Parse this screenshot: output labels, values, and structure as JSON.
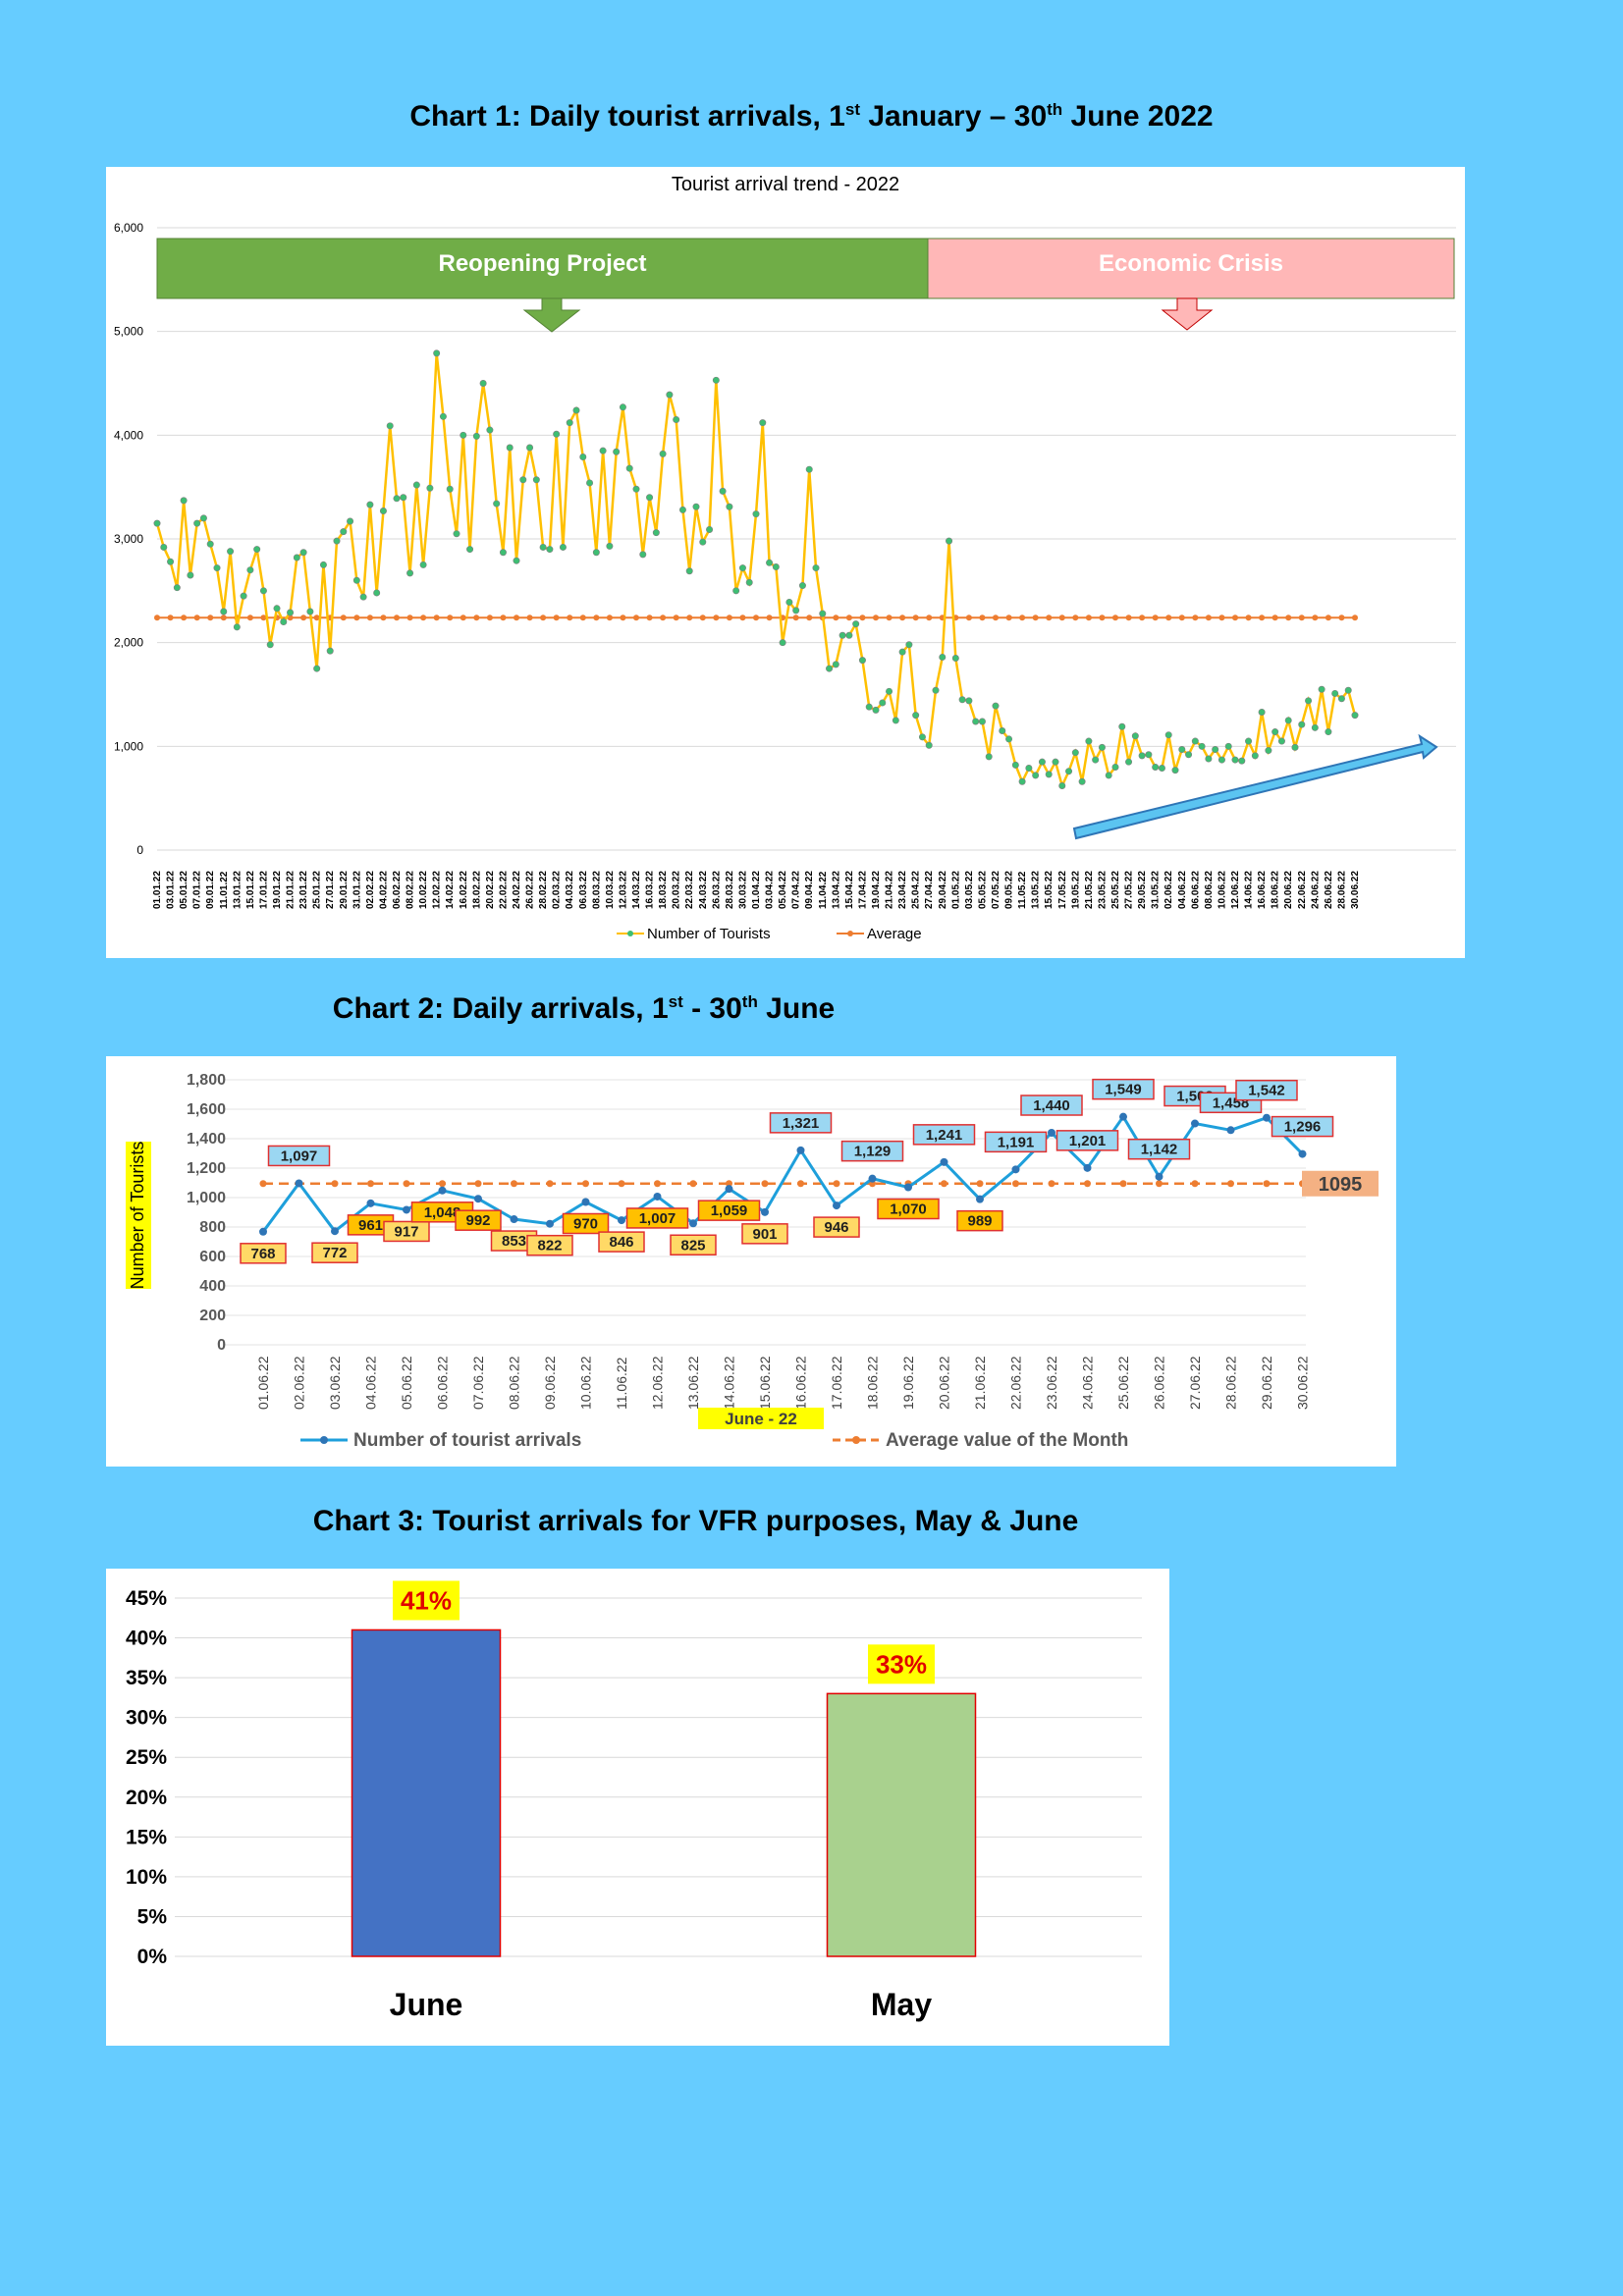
{
  "headings": {
    "chart1": {
      "pre": "Chart 1: Daily tourist arrivals, 1",
      "sup1": "st",
      "mid": " January – 30",
      "sup2": "th",
      "post": " June 2022"
    },
    "chart2": {
      "pre": "Chart 2: Daily arrivals, 1",
      "sup1": "st",
      "mid": " - 30",
      "sup2": "th",
      "post": " June"
    },
    "chart3": {
      "text": "Chart 3: Tourist arrivals for VFR purposes, May & June"
    }
  },
  "chart_data": [
    {
      "type": "line",
      "title": "Tourist arrival trend - 2022",
      "ylim": [
        0,
        6000
      ],
      "yticks": [
        "0",
        "1,000",
        "2,000",
        "3,000",
        "4,000",
        "5,000",
        "6,000"
      ],
      "yticks_values": [
        0,
        1000,
        2000,
        3000,
        4000,
        5000,
        6000
      ],
      "grid": true,
      "legend_position": "bottom",
      "banners": [
        "Reopening Project",
        "Economic Crisis"
      ],
      "x_tick_labels": [
        "01.01.22",
        "03.01.22",
        "05.01.22",
        "07.01.22",
        "09.01.22",
        "11.01.22",
        "13.01.22",
        "15.01.22",
        "17.01.22",
        "19.01.22",
        "21.01.22",
        "23.01.22",
        "25.01.22",
        "27.01.22",
        "29.01.22",
        "31.01.22",
        "02.02.22",
        "04.02.22",
        "06.02.22",
        "08.02.22",
        "10.02.22",
        "12.02.22",
        "14.02.22",
        "16.02.22",
        "18.02.22",
        "20.02.22",
        "22.02.22",
        "24.02.22",
        "26.02.22",
        "28.02.22",
        "02.03.22",
        "04.03.22",
        "06.03.22",
        "08.03.22",
        "10.03.22",
        "12.03.22",
        "14.03.22",
        "16.03.22",
        "18.03.22",
        "20.03.22",
        "22.03.22",
        "24.03.22",
        "26.03.22",
        "28.03.22",
        "30.03.22",
        "01.04.22",
        "03.04.22",
        "05.04.22",
        "07.04.22",
        "09.04.22",
        "11.04.22",
        "13.04.22",
        "15.04.22",
        "17.04.22",
        "19.04.22",
        "21.04.22",
        "23.04.22",
        "25.04.22",
        "27.04.22",
        "29.04.22",
        "01.05.22",
        "03.05.22",
        "05.05.22",
        "07.05.22",
        "09.05.22",
        "11.05.22",
        "13.05.22",
        "15.05.22",
        "17.05.22",
        "19.05.22",
        "21.05.22",
        "23.05.22",
        "25.05.22",
        "27.05.22",
        "29.05.22",
        "31.05.22",
        "02.06.22",
        "04.06.22",
        "06.06.22",
        "08.06.22",
        "10.06.22",
        "12.06.22",
        "14.06.22",
        "16.06.22",
        "18.06.22",
        "20.06.22",
        "22.06.22",
        "24.06.22",
        "26.06.22",
        "28.06.22",
        "30.06.22"
      ],
      "series": [
        {
          "name": "Number of Tourists",
          "color": "#FFC000",
          "values": [
            3150,
            2920,
            2780,
            2530,
            3370,
            2650,
            3150,
            3200,
            2950,
            2720,
            2300,
            2880,
            2150,
            2450,
            2700,
            2900,
            2500,
            1980,
            2330,
            2200,
            2290,
            2820,
            2870,
            2300,
            1750,
            2750,
            1920,
            2980,
            3070,
            3170,
            2600,
            2440,
            3330,
            2480,
            3270,
            4090,
            3390,
            3400,
            2670,
            3520,
            2750,
            3490,
            4790,
            4180,
            3480,
            3050,
            4000,
            2900,
            3990,
            4500,
            4050,
            3340,
            2870,
            3880,
            2790,
            3570,
            3880,
            3570,
            2920,
            2900,
            4010,
            2920,
            4120,
            4240,
            3790,
            3540,
            2870,
            3850,
            2930,
            3840,
            4270,
            3680,
            3480,
            2850,
            3400,
            3060,
            3820,
            4390,
            4150,
            3280,
            2690,
            3310,
            2970,
            3090,
            4530,
            3460,
            3310,
            2500,
            2720,
            2580,
            3240,
            4120,
            2770,
            2730,
            2000,
            2390,
            2310,
            2550,
            3670,
            2720,
            2280,
            1750,
            1790,
            2070,
            2070,
            2180,
            1830,
            1380,
            1350,
            1420,
            1530,
            1250,
            1910,
            1980,
            1300,
            1090,
            1010,
            1540,
            1860,
            2980,
            1850,
            1450,
            1440,
            1240,
            1240,
            900,
            1390,
            1150,
            1070,
            820,
            660,
            790,
            720,
            850,
            730,
            850,
            620,
            760,
            940,
            660,
            1050,
            870,
            990,
            720,
            800,
            1190,
            850,
            1100,
            910,
            920,
            800,
            790,
            1110,
            770,
            970,
            920,
            1050,
            1000,
            880,
            970,
            870,
            1000,
            870,
            860,
            1050,
            910,
            1330,
            960,
            1140,
            1050,
            1250,
            990,
            1210,
            1440,
            1180,
            1550,
            1140,
            1510,
            1460,
            1540,
            1300
          ]
        },
        {
          "name": "Average",
          "color": "#ED7D31",
          "value": 2240
        }
      ]
    },
    {
      "type": "line",
      "title": "",
      "xlabel": "June - 22",
      "ylabel": "Number of Tourists",
      "ylim": [
        0,
        1800
      ],
      "yticks": [
        "0",
        "200",
        "400",
        "600",
        "800",
        "1,000",
        "1,200",
        "1,400",
        "1,600",
        "1,800"
      ],
      "yticks_values": [
        0,
        200,
        400,
        600,
        800,
        1000,
        1200,
        1400,
        1600,
        1800
      ],
      "grid": true,
      "legend_position": "bottom",
      "categories": [
        "01.06.22",
        "02.06.22",
        "03.06.22",
        "04.06.22",
        "05.06.22",
        "06.06.22",
        "07.06.22",
        "08.06.22",
        "09.06.22",
        "10.06.22",
        "11.06.22",
        "12.06.22",
        "13.06.22",
        "14.06.22",
        "15.06.22",
        "16.06.22",
        "17.06.22",
        "18.06.22",
        "19.06.22",
        "20.06.22",
        "21.06.22",
        "22.06.22",
        "23.06.22",
        "24.06.22",
        "25.06.22",
        "26.06.22",
        "27.06.22",
        "28.06.22",
        "29.06.22",
        "30.06.22"
      ],
      "series": [
        {
          "name": "Number of tourist arrivals",
          "color": "#1E9FDB",
          "values": [
            768,
            1097,
            772,
            961,
            917,
            1048,
            992,
            853,
            822,
            970,
            846,
            1007,
            825,
            1059,
            901,
            1321,
            946,
            1129,
            1070,
            1241,
            989,
            1191,
            1440,
            1201,
            1549,
            1142,
            1503,
            1458,
            1542,
            1296
          ],
          "labels": [
            "768",
            "1,097",
            "772",
            "961",
            "917",
            "1,048",
            "992",
            "853",
            "822",
            "970",
            "846",
            "1,007",
            "825",
            "1,059",
            "901",
            "1,321",
            "946",
            "1,129",
            "1,070",
            "1,241",
            "989",
            "1,191",
            "1,440",
            "1,201",
            "1,549",
            "1,142",
            "1,503",
            "1,458",
            "1,542",
            "1,296"
          ]
        },
        {
          "name": "Average value of the Month",
          "color": "#ED7D31",
          "value": 1095,
          "label": "1095"
        }
      ]
    },
    {
      "type": "bar",
      "title": "",
      "categories": [
        "June",
        "May"
      ],
      "values": [
        41,
        33
      ],
      "value_labels": [
        "41%",
        "33%"
      ],
      "colors": [
        "#4472C4",
        "#A9D18E"
      ],
      "ylim": [
        0,
        45
      ],
      "yticks": [
        "0%",
        "5%",
        "10%",
        "15%",
        "20%",
        "25%",
        "30%",
        "35%",
        "40%",
        "45%"
      ],
      "yticks_values": [
        0,
        5,
        10,
        15,
        20,
        25,
        30,
        35,
        40,
        45
      ],
      "grid": true
    }
  ]
}
